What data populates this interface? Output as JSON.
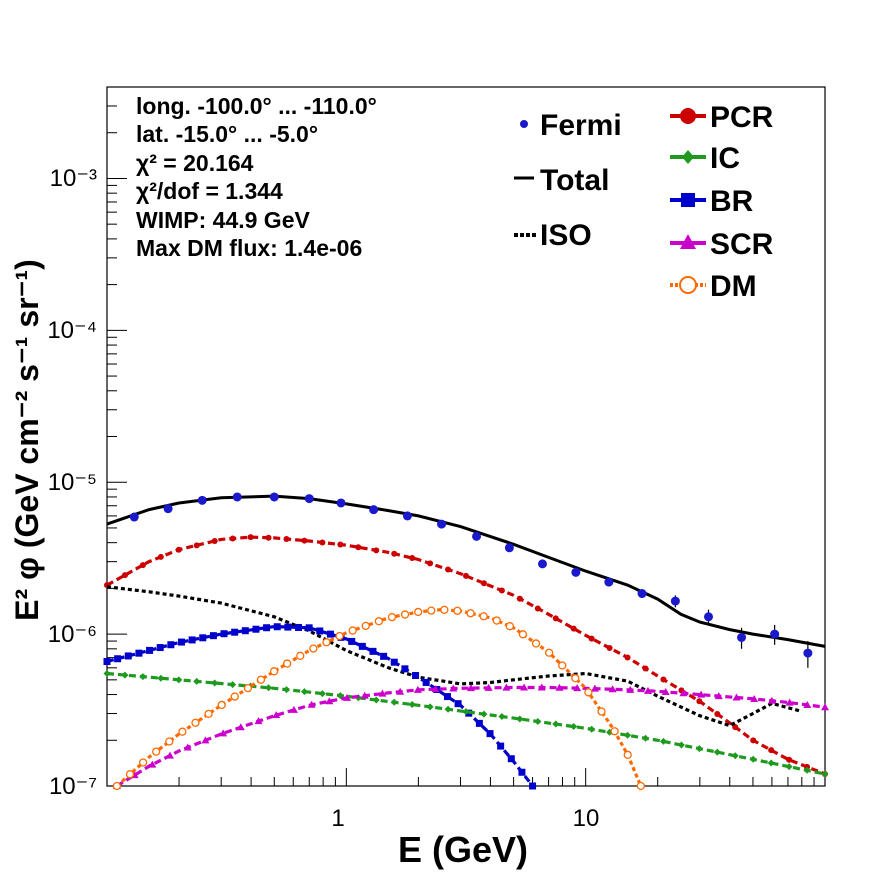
{
  "chart_data": {
    "type": "line",
    "xlabel": "E (GeV)",
    "ylabel": "E² φ (GeV cm⁻² s⁻¹ sr⁻¹)",
    "xscale": "log",
    "yscale": "log",
    "xlim": [
      0.1,
      100
    ],
    "ylim": [
      1e-07,
      0.004
    ],
    "x_tick_labels": [
      "1",
      "10"
    ],
    "y_tick_labels": [
      "10⁻⁷",
      "10⁻⁶",
      "10⁻⁵",
      "10⁻⁴",
      "10⁻³"
    ],
    "info_lines": [
      "long. -100.0° ... -110.0°",
      "lat. -15.0° ... -5.0°",
      "χ² = 20.164",
      "χ²/dof = 1.344",
      "WIMP: 44.9 GeV",
      "Max DM flux: 1.4e-06"
    ],
    "legend_left": [
      {
        "label": "Fermi",
        "style": "points"
      },
      {
        "label": "Total",
        "style": "line"
      },
      {
        "label": "ISO",
        "style": "dotted"
      }
    ],
    "legend_right": [
      {
        "label": "PCR",
        "color": "#cc0000",
        "marker": "circle"
      },
      {
        "label": "IC",
        "color": "#1e9a1e",
        "marker": "diamond"
      },
      {
        "label": "BR",
        "color": "#0000cc",
        "marker": "square"
      },
      {
        "label": "SCR",
        "color": "#cc00cc",
        "marker": "triangle"
      },
      {
        "label": "DM",
        "color": "#ff6a00",
        "marker": "open-circle"
      }
    ],
    "fermi": {
      "x": [
        0.13,
        0.18,
        0.25,
        0.35,
        0.5,
        0.7,
        0.95,
        1.3,
        1.8,
        2.5,
        3.5,
        4.8,
        6.6,
        9.1,
        12.5,
        17.2,
        23.7,
        32.6,
        44.8,
        61.6,
        84.8
      ],
      "y": [
        5.9e-06,
        6.7e-06,
        7.6e-06,
        8e-06,
        8e-06,
        7.8e-06,
        7.3e-06,
        6.6e-06,
        6e-06,
        5.3e-06,
        4.4e-06,
        3.7e-06,
        2.9e-06,
        2.55e-06,
        2.2e-06,
        1.85e-06,
        1.65e-06,
        1.3e-06,
        9.5e-07,
        1e-06,
        7.5e-07
      ],
      "err": [
        0,
        0,
        0,
        0,
        0,
        0,
        0,
        0,
        0,
        0,
        0,
        0,
        0,
        0,
        8e-08,
        1.2e-07,
        1.5e-07,
        1.5e-07,
        1.5e-07,
        1.5e-07,
        1.5e-07
      ],
      "color": "#1a1acc"
    },
    "series": [
      {
        "name": "Total",
        "color": "#000000",
        "dash": "none",
        "x": [
          0.1,
          0.15,
          0.2,
          0.3,
          0.5,
          0.7,
          1,
          1.5,
          2,
          3,
          5,
          7,
          10,
          15,
          20,
          25,
          30,
          40,
          50,
          70,
          100
        ],
        "y": [
          5.3e-06,
          6.6e-06,
          7.3e-06,
          7.9e-06,
          8.1e-06,
          7.8e-06,
          7.2e-06,
          6.5e-06,
          6e-06,
          5.1e-06,
          3.9e-06,
          3.2e-06,
          2.6e-06,
          2.1e-06,
          1.7e-06,
          1.35e-06,
          1.2e-06,
          1.07e-06,
          1e-06,
          9.2e-07,
          8.3e-07
        ]
      },
      {
        "name": "PCR",
        "color": "#cc0000",
        "dash": "7,4",
        "x": [
          0.1,
          0.15,
          0.2,
          0.3,
          0.4,
          0.5,
          0.7,
          1,
          1.5,
          2,
          3,
          5,
          7,
          10,
          15,
          20,
          30,
          40,
          50,
          70,
          100
        ],
        "y": [
          2.1e-06,
          3e-06,
          3.6e-06,
          4.2e-06,
          4.35e-06,
          4.3e-06,
          4.1e-06,
          3.85e-06,
          3.45e-06,
          3.1e-06,
          2.5e-06,
          1.8e-06,
          1.35e-06,
          9.8e-07,
          7e-07,
          5.3e-07,
          3.6e-07,
          2.6e-07,
          2e-07,
          1.5e-07,
          1.2e-07
        ]
      },
      {
        "name": "ISO",
        "color": "#000000",
        "dash": "4,3",
        "x": [
          0.1,
          0.15,
          0.2,
          0.3,
          0.5,
          0.7,
          1,
          1.5,
          2,
          3,
          4,
          5,
          7,
          10,
          15,
          20,
          30,
          40,
          50,
          60,
          80
        ],
        "y": [
          2.05e-06,
          1.9e-06,
          1.78e-06,
          1.6e-06,
          1.3e-06,
          1.05e-06,
          7.8e-07,
          6e-07,
          5.2e-07,
          4.7e-07,
          4.8e-07,
          5e-07,
          5.3e-07,
          5.5e-07,
          4.9e-07,
          3.9e-07,
          2.9e-07,
          2.5e-07,
          3e-07,
          3.5e-07,
          3.1e-07
        ]
      },
      {
        "name": "BR",
        "color": "#0000cc",
        "dash": "7,4",
        "x": [
          0.1,
          0.15,
          0.2,
          0.3,
          0.5,
          0.7,
          1,
          1.5,
          2,
          3,
          4,
          5,
          6
        ],
        "y": [
          6.6e-07,
          7.8e-07,
          8.8e-07,
          1e-06,
          1.12e-06,
          1.1e-06,
          9.3e-07,
          6.9e-07,
          5.2e-07,
          3.4e-07,
          2.2e-07,
          1.45e-07,
          1e-07
        ]
      },
      {
        "name": "IC",
        "color": "#1e9a1e",
        "dash": "7,4",
        "x": [
          0.1,
          0.2,
          0.5,
          1,
          2,
          5,
          10,
          20,
          50,
          100
        ],
        "y": [
          5.5e-07,
          5e-07,
          4.4e-07,
          3.9e-07,
          3.4e-07,
          2.8e-07,
          2.4e-07,
          2e-07,
          1.5e-07,
          1.2e-07
        ]
      },
      {
        "name": "SCR",
        "color": "#cc00cc",
        "dash": "7,4",
        "x": [
          0.11,
          0.15,
          0.2,
          0.3,
          0.5,
          0.7,
          1,
          1.5,
          2,
          3,
          5,
          7,
          10,
          15,
          20,
          30,
          50,
          70,
          100
        ],
        "y": [
          1e-07,
          1.35e-07,
          1.7e-07,
          2.2e-07,
          2.9e-07,
          3.4e-07,
          3.8e-07,
          4.1e-07,
          4.3e-07,
          4.4e-07,
          4.45e-07,
          4.45e-07,
          4.4e-07,
          4.3e-07,
          4.2e-07,
          4e-07,
          3.75e-07,
          3.55e-07,
          3.3e-07
        ]
      },
      {
        "name": "DM",
        "color": "#ff6a00",
        "dash": "4,3",
        "x": [
          0.11,
          0.15,
          0.2,
          0.3,
          0.5,
          0.7,
          1,
          1.5,
          2,
          2.5,
          3,
          4,
          5,
          7,
          10,
          13,
          15,
          17
        ],
        "y": [
          1e-07,
          1.55e-07,
          2.2e-07,
          3.4e-07,
          5.7e-07,
          7.8e-07,
          1.02e-06,
          1.28e-06,
          1.4e-06,
          1.45e-06,
          1.42e-06,
          1.28e-06,
          1.1e-06,
          7.6e-07,
          4.4e-07,
          2.4e-07,
          1.6e-07,
          1e-07
        ]
      }
    ]
  }
}
